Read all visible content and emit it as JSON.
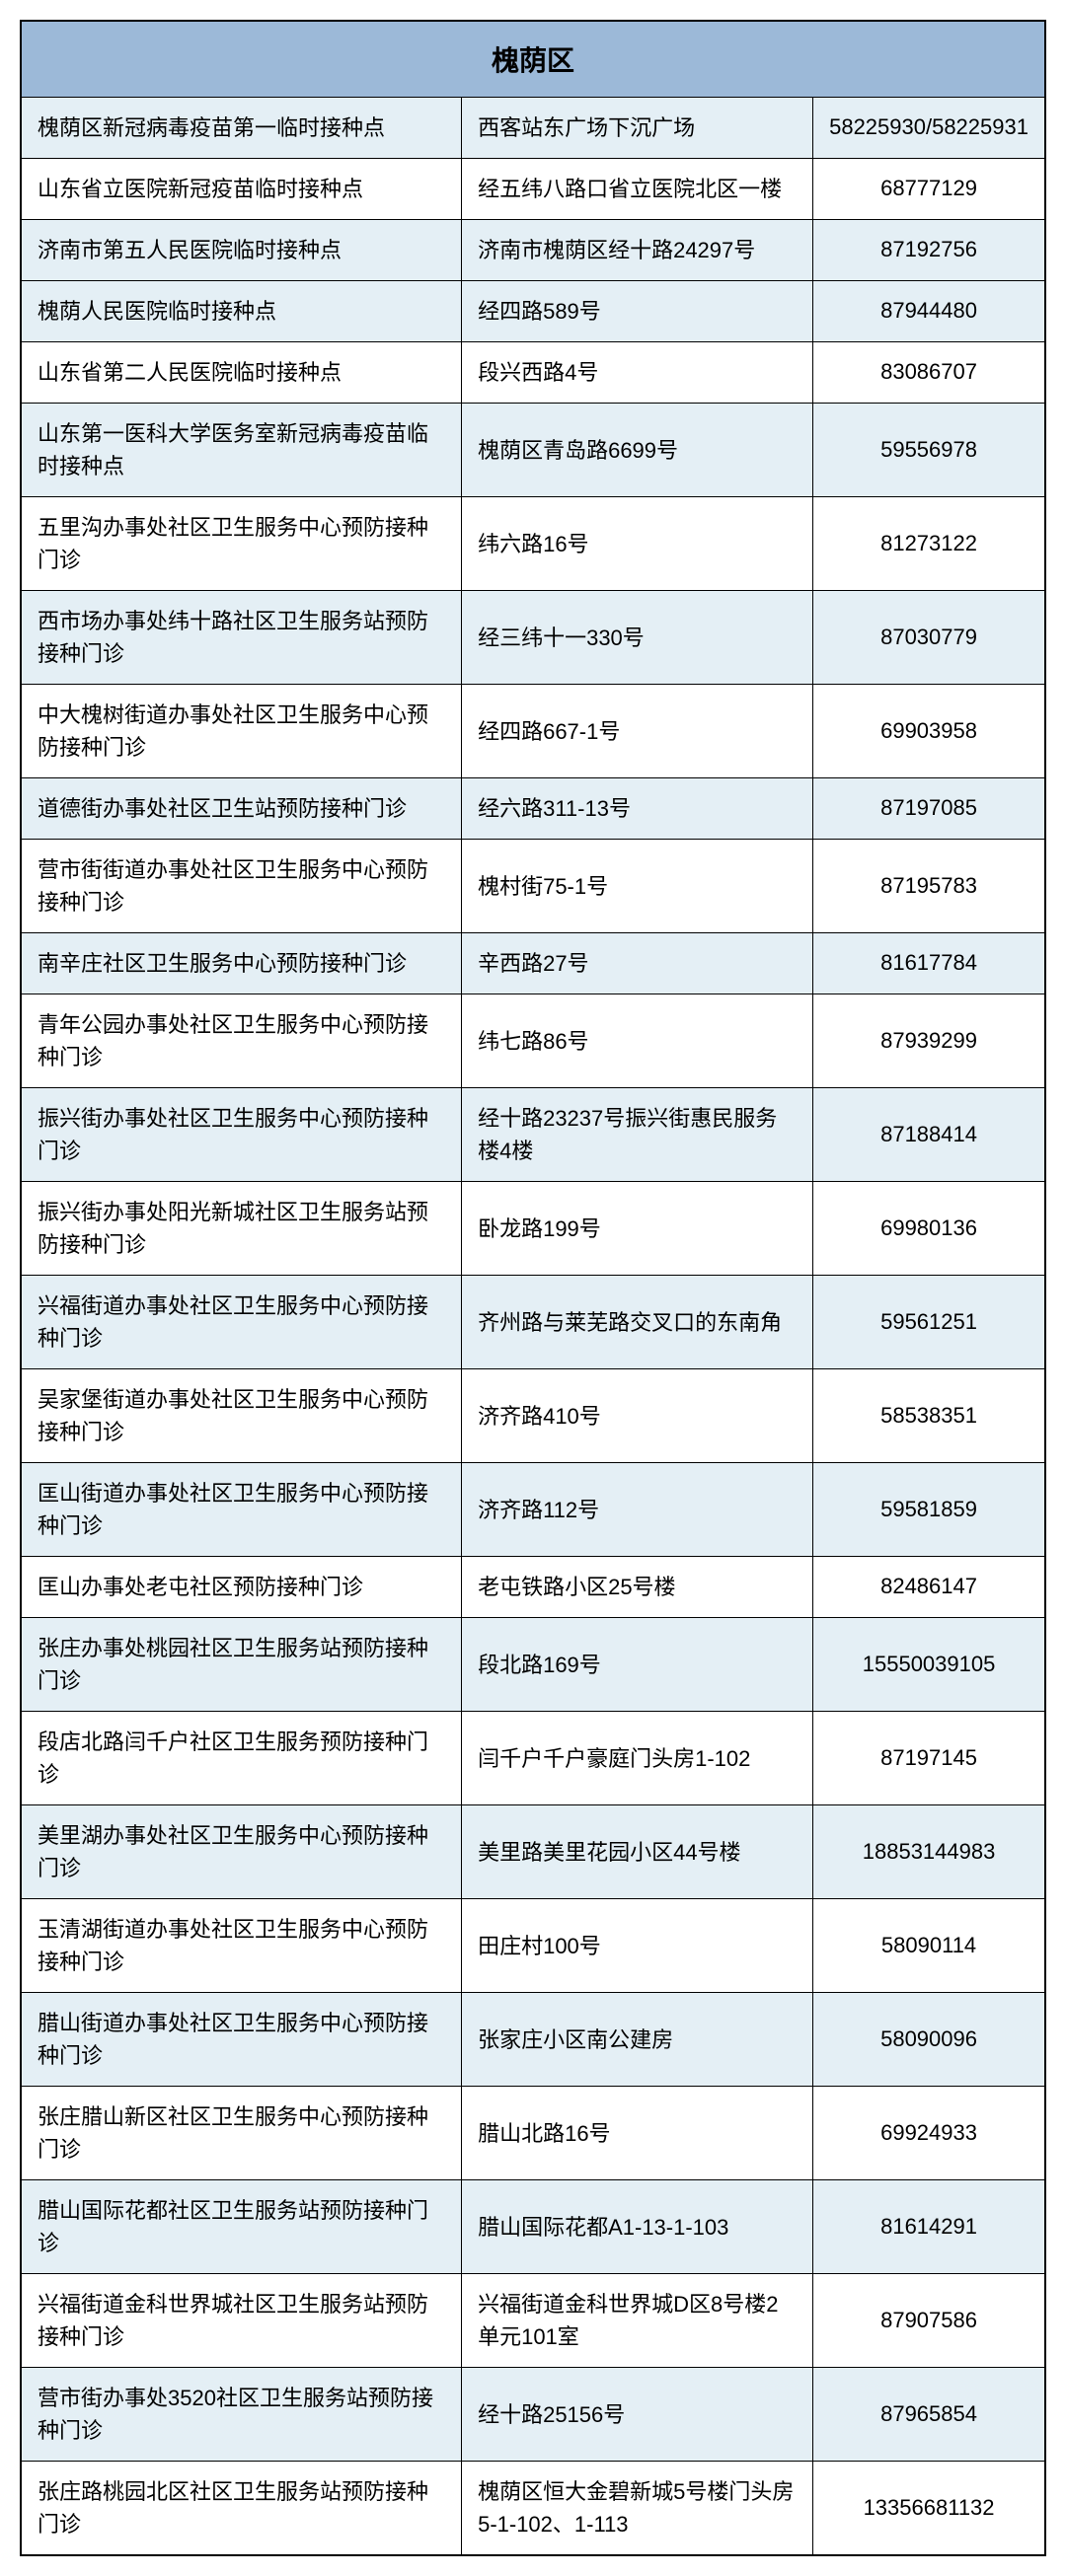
{
  "table": {
    "header": "槐荫区",
    "header_bg": "#9cb9d8",
    "alt_row_bg": "#e4eff5",
    "border_color": "#000000",
    "font_family": "Microsoft YaHei",
    "header_fontsize": 28,
    "cell_fontsize": 22,
    "columns": [
      {
        "key": "name",
        "width": "44%",
        "align": "left"
      },
      {
        "key": "address",
        "width": "35%",
        "align": "left"
      },
      {
        "key": "phone",
        "width": "21%",
        "align": "center"
      }
    ],
    "rows": [
      {
        "name": "槐荫区新冠病毒疫苗第一临时接种点",
        "address": "西客站东广场下沉广场",
        "phone": "58225930/58225931",
        "alt": true
      },
      {
        "name": "山东省立医院新冠疫苗临时接种点",
        "address": "经五纬八路口省立医院北区一楼",
        "phone": "68777129",
        "alt": false
      },
      {
        "name": "济南市第五人民医院临时接种点",
        "address": "济南市槐荫区经十路24297号",
        "phone": "87192756",
        "alt": true
      },
      {
        "name": "槐荫人民医院临时接种点",
        "address": "经四路589号",
        "phone": "87944480",
        "alt": true
      },
      {
        "name": "山东省第二人民医院临时接种点",
        "address": "段兴西路4号",
        "phone": "83086707",
        "alt": false
      },
      {
        "name": "山东第一医科大学医务室新冠病毒疫苗临时接种点",
        "address": "槐荫区青岛路6699号",
        "phone": "59556978",
        "alt": true
      },
      {
        "name": "五里沟办事处社区卫生服务中心预防接种门诊",
        "address": "纬六路16号",
        "phone": "81273122",
        "alt": false
      },
      {
        "name": "西市场办事处纬十路社区卫生服务站预防接种门诊",
        "address": "经三纬十一330号",
        "phone": "87030779",
        "alt": true
      },
      {
        "name": "中大槐树街道办事处社区卫生服务中心预防接种门诊",
        "address": "经四路667-1号",
        "phone": "69903958",
        "alt": false
      },
      {
        "name": "道德街办事处社区卫生站预防接种门诊",
        "address": "经六路311-13号",
        "phone": "87197085",
        "alt": true
      },
      {
        "name": "营市街街道办事处社区卫生服务中心预防接种门诊",
        "address": "槐村街75-1号",
        "phone": "87195783",
        "alt": false
      },
      {
        "name": "南辛庄社区卫生服务中心预防接种门诊",
        "address": "辛西路27号",
        "phone": "81617784",
        "alt": true
      },
      {
        "name": "青年公园办事处社区卫生服务中心预防接种门诊",
        "address": "纬七路86号",
        "phone": "87939299",
        "alt": false
      },
      {
        "name": "振兴街办事处社区卫生服务中心预防接种门诊",
        "address": "经十路23237号振兴街惠民服务楼4楼",
        "phone": "87188414",
        "alt": true
      },
      {
        "name": "振兴街办事处阳光新城社区卫生服务站预防接种门诊",
        "address": "卧龙路199号",
        "phone": "69980136",
        "alt": false
      },
      {
        "name": "兴福街道办事处社区卫生服务中心预防接种门诊",
        "address": "齐州路与莱芜路交叉口的东南角",
        "phone": "59561251",
        "alt": true
      },
      {
        "name": "吴家堡街道办事处社区卫生服务中心预防接种门诊",
        "address": "济齐路410号",
        "phone": "58538351",
        "alt": false
      },
      {
        "name": "匡山街道办事处社区卫生服务中心预防接种门诊",
        "address": "济齐路112号",
        "phone": "59581859",
        "alt": true
      },
      {
        "name": "匡山办事处老屯社区预防接种门诊",
        "address": "老屯铁路小区25号楼",
        "phone": "82486147",
        "alt": false
      },
      {
        "name": "张庄办事处桃园社区卫生服务站预防接种门诊",
        "address": "段北路169号",
        "phone": "15550039105",
        "alt": true
      },
      {
        "name": "段店北路闫千户社区卫生服务预防接种门诊",
        "address": "闫千户千户豪庭门头房1-102",
        "phone": "87197145",
        "alt": false
      },
      {
        "name": "美里湖办事处社区卫生服务中心预防接种门诊",
        "address": "美里路美里花园小区44号楼",
        "phone": "18853144983",
        "alt": true
      },
      {
        "name": "玉清湖街道办事处社区卫生服务中心预防接种门诊",
        "address": "田庄村100号",
        "phone": "58090114",
        "alt": false
      },
      {
        "name": "腊山街道办事处社区卫生服务中心预防接种门诊",
        "address": "张家庄小区南公建房",
        "phone": "58090096",
        "alt": true
      },
      {
        "name": "张庄腊山新区社区卫生服务中心预防接种门诊",
        "address": "腊山北路16号",
        "phone": "69924933",
        "alt": false
      },
      {
        "name": "腊山国际花都社区卫生服务站预防接种门诊",
        "address": "腊山国际花都A1-13-1-103",
        "phone": "81614291",
        "alt": true
      },
      {
        "name": "兴福街道金科世界城社区卫生服务站预防接种门诊",
        "address": "兴福街道金科世界城D区8号楼2单元101室",
        "phone": "87907586",
        "alt": false
      },
      {
        "name": "营市街办事处3520社区卫生服务站预防接种门诊",
        "address": "经十路25156号",
        "phone": "87965854",
        "alt": true
      },
      {
        "name": "张庄路桃园北区社区卫生服务站预防接种门诊",
        "address": "槐荫区恒大金碧新城5号楼门头房5-1-102、1-113",
        "phone": "13356681132",
        "alt": false
      }
    ]
  }
}
